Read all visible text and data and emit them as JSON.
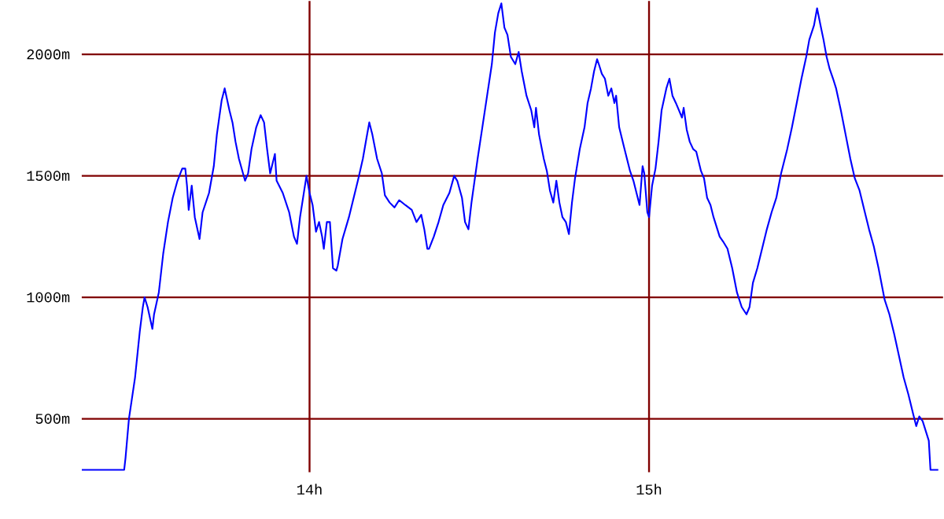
{
  "chart_data": {
    "type": "line",
    "x": [
      13.329,
      13.454,
      13.458,
      13.468,
      13.486,
      13.5,
      13.509,
      13.514,
      13.523,
      13.537,
      13.542,
      13.556,
      13.569,
      13.583,
      13.597,
      13.611,
      13.625,
      13.634,
      13.639,
      13.644,
      13.653,
      13.662,
      13.676,
      13.685,
      13.704,
      13.718,
      13.727,
      13.741,
      13.75,
      13.764,
      13.773,
      13.782,
      13.792,
      13.81,
      13.819,
      13.829,
      13.843,
      13.856,
      13.866,
      13.875,
      13.884,
      13.898,
      13.903,
      13.921,
      13.94,
      13.954,
      13.963,
      13.972,
      13.981,
      13.991,
      14,
      14.009,
      14.019,
      14.028,
      14.037,
      14.042,
      14.051,
      14.06,
      14.069,
      14.079,
      14.083,
      14.097,
      14.116,
      14.13,
      14.144,
      14.157,
      14.167,
      14.176,
      14.185,
      14.199,
      14.213,
      14.222,
      14.236,
      14.25,
      14.264,
      14.282,
      14.301,
      14.315,
      14.329,
      14.338,
      14.347,
      14.352,
      14.366,
      14.38,
      14.394,
      14.412,
      14.426,
      14.435,
      14.449,
      14.458,
      14.468,
      14.477,
      14.486,
      14.495,
      14.509,
      14.523,
      14.537,
      14.546,
      14.556,
      14.565,
      14.574,
      14.583,
      14.593,
      14.606,
      14.616,
      14.625,
      14.639,
      14.653,
      14.662,
      14.667,
      14.676,
      14.69,
      14.699,
      14.708,
      14.718,
      14.727,
      14.736,
      14.745,
      14.755,
      14.764,
      14.773,
      14.782,
      14.796,
      14.81,
      14.819,
      14.829,
      14.838,
      14.847,
      14.852,
      14.861,
      14.87,
      14.88,
      14.889,
      14.898,
      14.903,
      14.912,
      14.926,
      14.935,
      14.944,
      14.954,
      14.963,
      14.972,
      14.981,
      14.986,
      14.995,
      15,
      15.009,
      15.019,
      15.028,
      15.037,
      15.051,
      15.06,
      15.069,
      15.079,
      15.088,
      15.097,
      15.102,
      15.111,
      15.12,
      15.13,
      15.139,
      15.153,
      15.162,
      15.171,
      15.181,
      15.19,
      15.199,
      15.208,
      15.218,
      15.231,
      15.245,
      15.259,
      15.273,
      15.287,
      15.296,
      15.306,
      15.319,
      15.333,
      15.347,
      15.361,
      15.375,
      15.389,
      15.407,
      15.421,
      15.435,
      15.449,
      15.463,
      15.472,
      15.486,
      15.495,
      15.505,
      15.514,
      15.523,
      15.532,
      15.542,
      15.551,
      15.565,
      15.579,
      15.593,
      15.606,
      15.62,
      15.634,
      15.648,
      15.662,
      15.676,
      15.694,
      15.708,
      15.722,
      15.736,
      15.75,
      15.764,
      15.778,
      15.787,
      15.796,
      15.806,
      15.815,
      15.824,
      15.829,
      15.852
    ],
    "values": [
      290,
      290,
      340,
      500,
      670,
      860,
      960,
      1000,
      960,
      870,
      930,
      1020,
      1180,
      1310,
      1410,
      1480,
      1530,
      1530,
      1460,
      1360,
      1460,
      1330,
      1240,
      1350,
      1430,
      1540,
      1670,
      1810,
      1860,
      1770,
      1720,
      1640,
      1570,
      1480,
      1510,
      1610,
      1700,
      1750,
      1720,
      1610,
      1510,
      1590,
      1480,
      1430,
      1350,
      1250,
      1220,
      1330,
      1410,
      1500,
      1430,
      1380,
      1270,
      1310,
      1250,
      1200,
      1310,
      1310,
      1120,
      1110,
      1130,
      1240,
      1330,
      1410,
      1490,
      1570,
      1650,
      1720,
      1670,
      1570,
      1510,
      1420,
      1390,
      1370,
      1400,
      1380,
      1360,
      1310,
      1340,
      1280,
      1200,
      1200,
      1250,
      1310,
      1380,
      1430,
      1500,
      1480,
      1410,
      1310,
      1280,
      1390,
      1480,
      1570,
      1700,
      1830,
      1960,
      2090,
      2170,
      2210,
      2110,
      2080,
      1990,
      1960,
      2010,
      1930,
      1830,
      1770,
      1700,
      1780,
      1670,
      1570,
      1520,
      1440,
      1390,
      1480,
      1390,
      1330,
      1310,
      1260,
      1390,
      1490,
      1610,
      1700,
      1800,
      1860,
      1930,
      1980,
      1960,
      1920,
      1900,
      1830,
      1860,
      1800,
      1830,
      1700,
      1620,
      1570,
      1520,
      1480,
      1430,
      1380,
      1540,
      1510,
      1350,
      1330,
      1460,
      1530,
      1640,
      1770,
      1860,
      1900,
      1830,
      1800,
      1770,
      1740,
      1780,
      1690,
      1640,
      1610,
      1600,
      1520,
      1490,
      1410,
      1380,
      1330,
      1290,
      1250,
      1230,
      1200,
      1120,
      1020,
      960,
      930,
      960,
      1060,
      1120,
      1200,
      1280,
      1350,
      1410,
      1510,
      1610,
      1700,
      1800,
      1900,
      1990,
      2060,
      2120,
      2190,
      2120,
      2060,
      1990,
      1940,
      1900,
      1860,
      1770,
      1670,
      1570,
      1490,
      1440,
      1360,
      1280,
      1210,
      1120,
      990,
      930,
      850,
      760,
      670,
      600,
      520,
      470,
      510,
      490,
      450,
      410,
      290,
      290
    ],
    "color": "#0000ff",
    "xlim": [
      13.329,
      15.866
    ],
    "ylim": [
      280,
      2220
    ],
    "xticks": [
      {
        "value": 14,
        "label": "14h"
      },
      {
        "value": 15,
        "label": "15h"
      }
    ],
    "yticks": [
      {
        "value": 500,
        "label": "500m"
      },
      {
        "value": 1000,
        "label": "1000m"
      },
      {
        "value": 1500,
        "label": "1500m"
      },
      {
        "value": 2000,
        "label": "2000m"
      }
    ],
    "grid": true
  }
}
